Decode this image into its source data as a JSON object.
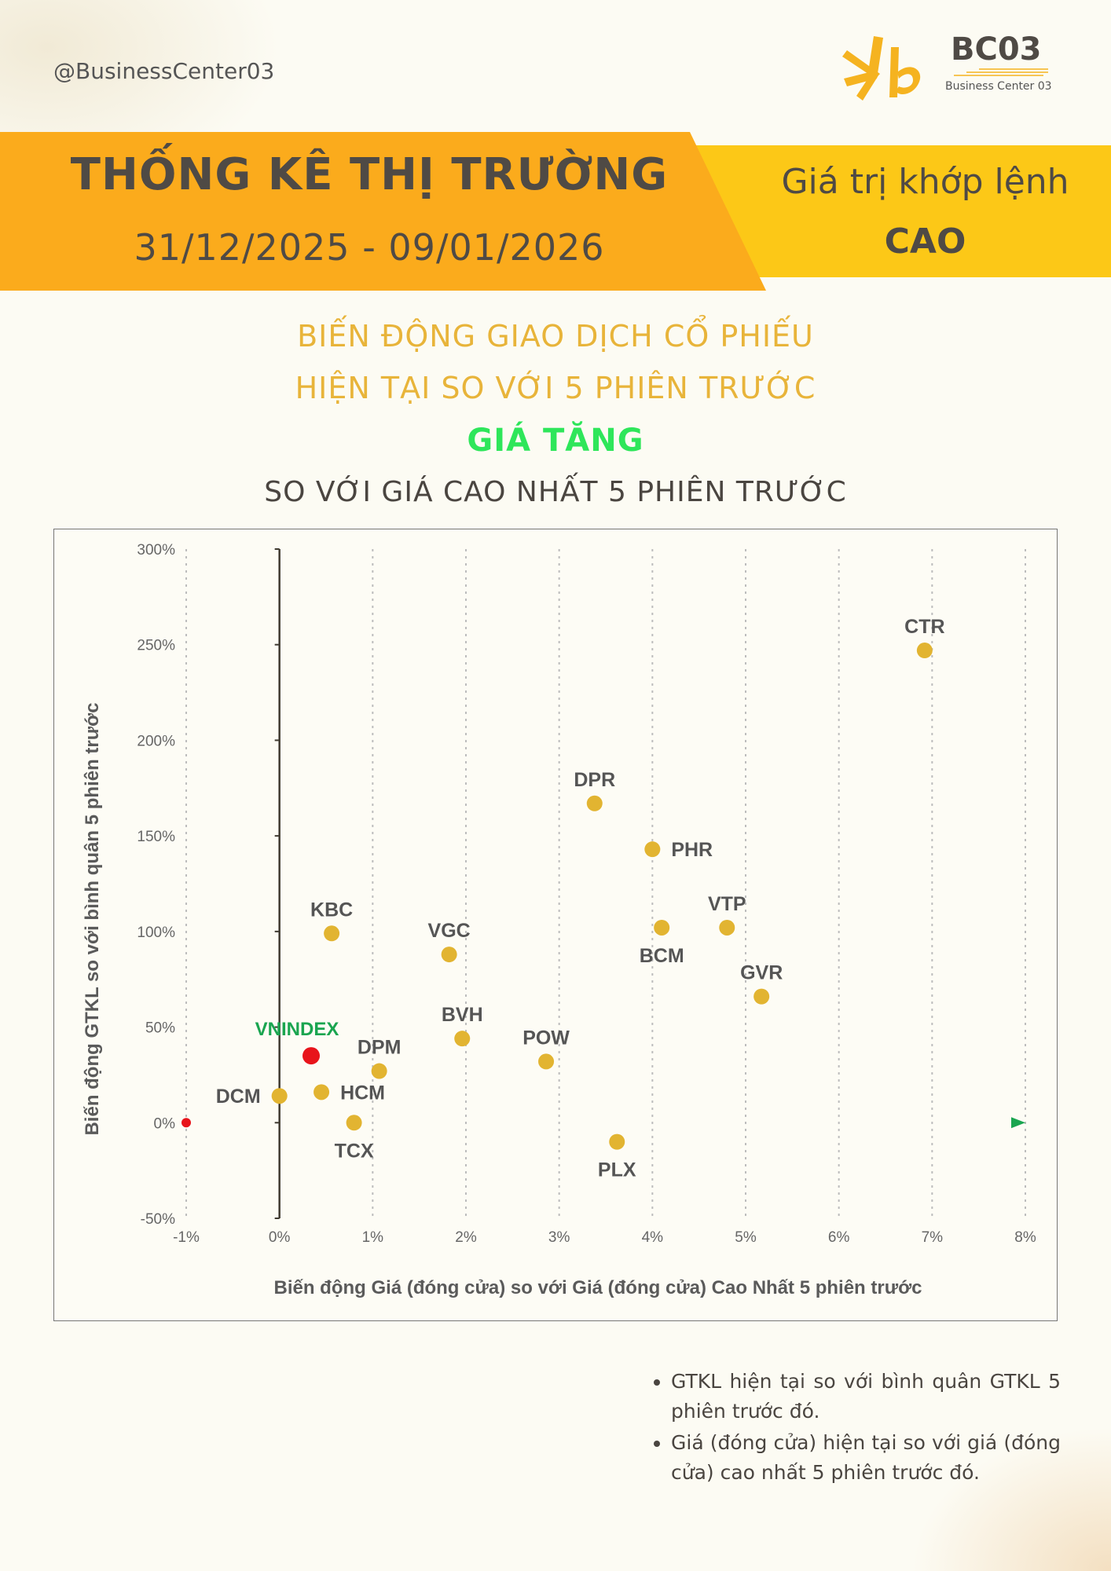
{
  "header": {
    "handle": "@BusinessCenter03",
    "logo_title": "BC03",
    "logo_subtitle": "Business Center 03"
  },
  "banner": {
    "title": "THỐNG KÊ THỊ TRƯỜNG",
    "date_range": "31/12/2025 - 09/01/2026",
    "right_label": "Giá trị khớp lệnh",
    "right_value": "CAO"
  },
  "subtitle": {
    "line1": "BIẾN ĐỘNG GIAO DỊCH CỔ PHIẾU",
    "line2": "HIỆN TẠI SO VỚI 5 PHIÊN TRƯỚC",
    "line3": "GIÁ TĂNG",
    "line4": "SO VỚI GIÁ CAO NHẤT 5 PHIÊN TRƯỚC"
  },
  "colors": {
    "band_orange": "#fbab1c",
    "band_yellow": "#fcc817",
    "point": "#e2b431",
    "index_point": "#e8141b",
    "index_label": "#1aa550",
    "axis_arrow_start": "#e8141b",
    "axis_arrow_end": "#1aa550"
  },
  "chart_data": {
    "type": "scatter",
    "xlabel": "Biến động Giá (đóng cửa) so với Giá (đóng cửa) Cao Nhất 5 phiên trước",
    "ylabel": "Biến động GTKL so với bình quân 5 phiên trước",
    "xlim": [
      -1,
      8
    ],
    "ylim": [
      -50,
      300
    ],
    "x_ticks": [
      -1,
      0,
      1,
      2,
      3,
      4,
      5,
      6,
      7,
      8
    ],
    "x_tick_labels": [
      "-1%",
      "0%",
      "1%",
      "2%",
      "3%",
      "4%",
      "5%",
      "6%",
      "7%",
      "8%"
    ],
    "y_ticks": [
      -50,
      0,
      50,
      100,
      150,
      200,
      250,
      300
    ],
    "y_tick_labels": [
      "-50%",
      "0%",
      "50%",
      "100%",
      "150%",
      "200%",
      "250%",
      "300%"
    ],
    "grid_x": true,
    "points": [
      {
        "label": "CTR",
        "x": 6.92,
        "y": 247,
        "label_pos": "top"
      },
      {
        "label": "DPR",
        "x": 3.38,
        "y": 167,
        "label_pos": "top"
      },
      {
        "label": "PHR",
        "x": 4.0,
        "y": 143,
        "label_pos": "right"
      },
      {
        "label": "VTP",
        "x": 4.8,
        "y": 102,
        "label_pos": "top"
      },
      {
        "label": "BCM",
        "x": 4.1,
        "y": 102,
        "label_pos": "bottom"
      },
      {
        "label": "GVR",
        "x": 5.17,
        "y": 66,
        "label_pos": "top"
      },
      {
        "label": "KBC",
        "x": 0.56,
        "y": 99,
        "label_pos": "top"
      },
      {
        "label": "VGC",
        "x": 1.82,
        "y": 88,
        "label_pos": "top"
      },
      {
        "label": "BVH",
        "x": 1.96,
        "y": 44,
        "label_pos": "top"
      },
      {
        "label": "POW",
        "x": 2.86,
        "y": 32,
        "label_pos": "top"
      },
      {
        "label": "DPM",
        "x": 1.07,
        "y": 27,
        "label_pos": "top"
      },
      {
        "label": "HCM",
        "x": 0.45,
        "y": 16,
        "label_pos": "right"
      },
      {
        "label": "DCM",
        "x": 0.0,
        "y": 14,
        "label_pos": "left"
      },
      {
        "label": "TCX",
        "x": 0.8,
        "y": 0,
        "label_pos": "bottom"
      },
      {
        "label": "PLX",
        "x": 3.62,
        "y": -10,
        "label_pos": "bottom"
      }
    ],
    "highlight": {
      "label": "VNINDEX",
      "x": 0.34,
      "y": 35
    }
  },
  "notes": [
    "GTKL hiện tại so với bình quân GTKL 5 phiên trước đó.",
    "Giá (đóng cửa) hiện tại so với giá (đóng cửa) cao nhất 5 phiên trước đó."
  ]
}
